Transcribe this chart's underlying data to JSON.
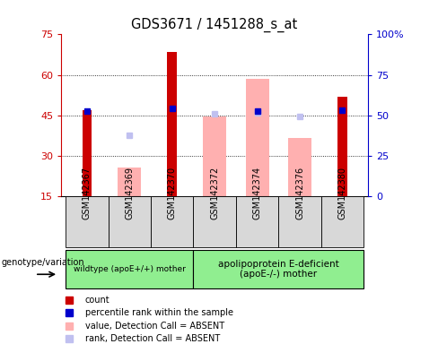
{
  "title": "GDS3671 / 1451288_s_at",
  "samples": [
    "GSM142367",
    "GSM142369",
    "GSM142370",
    "GSM142372",
    "GSM142374",
    "GSM142376",
    "GSM142380"
  ],
  "x_positions": [
    0,
    1,
    2,
    3,
    4,
    5,
    6
  ],
  "red_bar_values": [
    47.0,
    null,
    68.5,
    null,
    null,
    null,
    52.0
  ],
  "blue_square_values": [
    46.5,
    null,
    47.5,
    null,
    46.5,
    null,
    47.0
  ],
  "pink_bar_values": [
    null,
    25.5,
    null,
    44.5,
    58.5,
    36.5,
    null
  ],
  "lavender_square_values": [
    null,
    37.5,
    null,
    45.5,
    46.0,
    44.5,
    null
  ],
  "bar_bottom": 15,
  "ylim": [
    15,
    75
  ],
  "yticks": [
    15,
    30,
    45,
    60,
    75
  ],
  "ytick_labels": [
    "15",
    "30",
    "45",
    "60",
    "75"
  ],
  "right_yticks": [
    0,
    25,
    50,
    75,
    100
  ],
  "right_ytick_labels": [
    "0",
    "25",
    "50",
    "75",
    "100%"
  ],
  "group1_label": "wildtype (apoE+/+) mother",
  "group2_label": "apolipoprotein E-deficient\n(apoE-/-) mother",
  "genotype_label": "genotype/variation",
  "legend_labels": [
    "count",
    "percentile rank within the sample",
    "value, Detection Call = ABSENT",
    "rank, Detection Call = ABSENT"
  ],
  "red_color": "#cc0000",
  "blue_color": "#0000cc",
  "pink_color": "#ffb0b0",
  "lavender_color": "#c0c0f0",
  "green_color": "#90ee90",
  "gray_color": "#d8d8d8"
}
